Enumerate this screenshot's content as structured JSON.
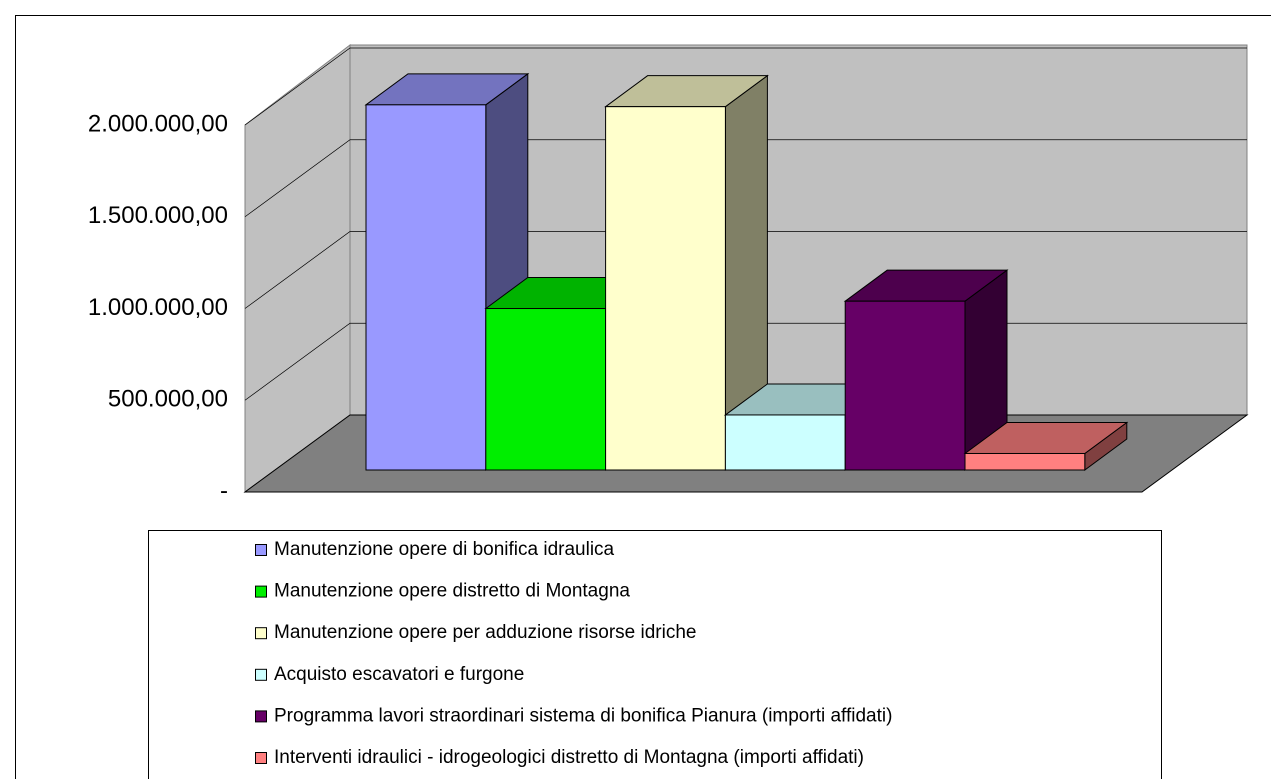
{
  "chart_data": {
    "type": "bar3d",
    "categories": [
      "Manutenzione opere di bonifica idraulica",
      "Manutenzione opere distretto di Montagna",
      "Manutenzione opere per adduzione risorse idriche",
      "Acquisto escavatori e furgone",
      "Programma lavori straordinari sistema di bonifica Pianura (importi affidati)",
      "Interventi idraulici - idrogeologici distretto di Montagna (importi affidati)"
    ],
    "values": [
      1990000,
      880000,
      1980000,
      300000,
      920000,
      90000
    ],
    "colors": [
      "#9999ff",
      "#00ee00",
      "#ffffcc",
      "#ccffff",
      "#660066",
      "#ff8080"
    ],
    "ylim": [
      0,
      2000000
    ],
    "yticks": [
      {
        "value": 0,
        "label": "-"
      },
      {
        "value": 500000,
        "label": "500.000,00"
      },
      {
        "value": 1000000,
        "label": "1.000.000,00"
      },
      {
        "value": 1500000,
        "label": "1.500.000,00"
      },
      {
        "value": 2000000,
        "label": "2.000.000,00"
      }
    ],
    "grid": true,
    "legend": "bottom"
  }
}
